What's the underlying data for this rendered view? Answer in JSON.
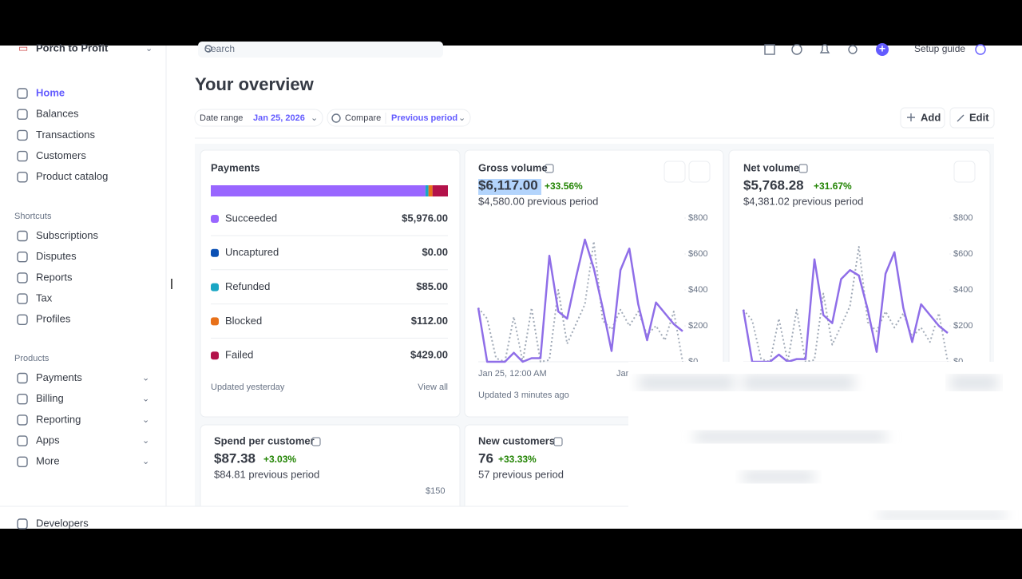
{
  "sidebar": {
    "account": "Porch to Profit",
    "nav": [
      "Home",
      "Balances",
      "Transactions",
      "Customers",
      "Product catalog"
    ],
    "shortcuts_title": "Shortcuts",
    "shortcuts": [
      "Subscriptions",
      "Disputes",
      "Reports",
      "Tax",
      "Profiles"
    ],
    "products_title": "Products",
    "products": [
      "Payments",
      "Billing",
      "Reporting",
      "Apps",
      "More"
    ],
    "footer": "Developers"
  },
  "topbar": {
    "search": "Search",
    "setup": "Setup guide"
  },
  "page": {
    "title": "Your overview",
    "date_range_label": "Date range",
    "date_range": "Jan 25, 2026",
    "compare_label": "Compare",
    "compare": "Previous period",
    "add": "Add",
    "edit": "Edit"
  },
  "payments": {
    "title": "Payments",
    "rows": [
      {
        "label": "Succeeded",
        "color": "#9966ff",
        "amount": {
          "value": 5976,
          "label": "$5,976.00"
        }
      },
      {
        "label": "Uncaptured",
        "color": "#0a50b4",
        "amount": {
          "value": 0,
          "label": "$0.00"
        }
      },
      {
        "label": "Refunded",
        "color": "#1aa6c4",
        "amount": {
          "value": 85,
          "label": "$85.00"
        }
      },
      {
        "label": "Blocked",
        "color": "#e8711a",
        "amount": {
          "value": 112,
          "label": "$112.00"
        }
      },
      {
        "label": "Failed",
        "color": "#b3124a",
        "amount": {
          "value": 429,
          "label": "$429.00"
        }
      }
    ],
    "updated": "Updated yesterday",
    "view_all": "View all"
  },
  "gross": {
    "title": "Gross volume",
    "value": "$6,117.00",
    "change": "+33.56%",
    "previous": "$4,580.00 previous period",
    "x_start": "Jan 25, 12:00 AM",
    "x_end": "Jan",
    "updated": "Updated 3 minutes ago",
    "chart": {
      "type": "line",
      "ylim": [
        0,
        800
      ],
      "yticks": [
        {
          "value": 0,
          "label": "$0"
        },
        {
          "value": 200,
          "label": "$200"
        },
        {
          "value": 400,
          "label": "$400"
        },
        {
          "value": 600,
          "label": "$600"
        },
        {
          "value": 800,
          "label": "$800"
        }
      ],
      "series": [
        {
          "color": "#8f6ee8",
          "values": [
            300,
            0,
            0,
            0,
            50,
            0,
            20,
            20,
            590,
            280,
            240,
            470,
            680,
            520,
            300,
            60,
            510,
            630,
            320,
            120,
            330,
            270,
            210,
            170
          ]
        },
        {
          "color": "#a3acb9",
          "values": [
            300,
            240,
            20,
            0,
            250,
            0,
            300,
            0,
            10,
            400,
            100,
            210,
            320,
            670,
            230,
            180,
            290,
            200,
            280,
            150,
            200,
            120,
            280,
            0
          ]
        }
      ]
    }
  },
  "net": {
    "title": "Net volume",
    "value": "$5,768.28",
    "change": "+31.67%",
    "previous": "$4,381.02 previous period",
    "chart": {
      "type": "line",
      "ylim": [
        0,
        800
      ],
      "yticks": [
        {
          "value": 0,
          "label": "$0"
        },
        {
          "value": 200,
          "label": "$200"
        },
        {
          "value": 400,
          "label": "$400"
        },
        {
          "value": 600,
          "label": "$600"
        },
        {
          "value": 800,
          "label": "$800"
        }
      ],
      "series": [
        {
          "color": "#8f6ee8",
          "values": [
            290,
            0,
            0,
            0,
            40,
            0,
            15,
            15,
            570,
            260,
            215,
            460,
            510,
            480,
            290,
            55,
            490,
            610,
            300,
            110,
            320,
            260,
            200,
            160
          ]
        },
        {
          "color": "#a3acb9",
          "values": [
            290,
            230,
            15,
            0,
            240,
            0,
            290,
            0,
            10,
            380,
            95,
            200,
            310,
            640,
            220,
            170,
            280,
            190,
            270,
            140,
            190,
            110,
            270,
            0
          ]
        }
      ]
    }
  },
  "spend": {
    "title": "Spend per customer",
    "value": "$87.38",
    "change": "+3.03%",
    "previous": "$84.81 previous period",
    "ytick": "$150"
  },
  "new_customers": {
    "title": "New customers",
    "value": "76",
    "change": "+33.33%",
    "previous": "57 previous period"
  }
}
